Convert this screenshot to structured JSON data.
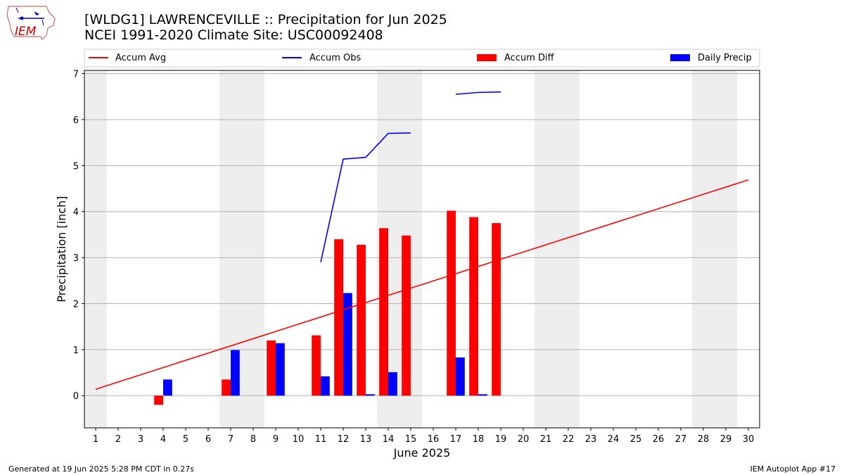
{
  "title_line1": "[WLDG1] LAWRENCEVILLE :: Precipitation for Jun 2025",
  "title_line2": "NCEI 1991-2020 Climate Site: USC00092408",
  "logo_text": "IEM",
  "footer_left": "Generated at 19 Jun 2025 5:28 PM CDT in 0.27s",
  "footer_right": "IEM Autoplot App #17",
  "colors": {
    "avg": "#ff0000",
    "obs": "#0000ff",
    "diff": "#ff0000",
    "daily": "#0000ff",
    "weekend": "#eeeeee",
    "grid": "#b0b0b0"
  },
  "chart_data": {
    "type": "bar",
    "xlabel": "June 2025",
    "ylabel": "Precipitation [inch]",
    "xlim": [
      0.5,
      30.5
    ],
    "ylim": [
      -0.7,
      7.07
    ],
    "x_ticks": [
      1,
      2,
      3,
      4,
      5,
      6,
      7,
      8,
      9,
      10,
      11,
      12,
      13,
      14,
      15,
      16,
      17,
      18,
      19,
      20,
      21,
      22,
      23,
      24,
      25,
      26,
      27,
      28,
      29,
      30
    ],
    "y_ticks": [
      0,
      1,
      2,
      3,
      4,
      5,
      6,
      7
    ],
    "grid": "y",
    "legend_position": "top, above plot",
    "legend": [
      "Accum Avg",
      "Accum Obs",
      "Accum Diff",
      "Daily Precip"
    ],
    "weekend_days": [
      1,
      7,
      8,
      14,
      15,
      21,
      22,
      28,
      29
    ],
    "accum_avg": {
      "name": "Accum Avg",
      "x": [
        1,
        30
      ],
      "values": [
        0.14,
        4.69
      ]
    },
    "accum_obs": {
      "name": "Accum Obs",
      "segments": [
        {
          "x": [
            11,
            12,
            13,
            14,
            15
          ],
          "values": [
            2.9,
            5.14,
            5.18,
            5.7,
            5.71
          ]
        },
        {
          "x": [
            17,
            18,
            19
          ],
          "values": [
            6.55,
            6.59,
            6.6
          ]
        }
      ]
    },
    "accum_diff": {
      "name": "Accum Diff",
      "x": [
        4,
        7,
        9,
        11,
        12,
        13,
        14,
        15,
        17,
        18,
        19
      ],
      "values": [
        -0.2,
        0.35,
        1.2,
        1.31,
        3.4,
        3.28,
        3.64,
        3.48,
        4.02,
        3.88,
        3.75
      ]
    },
    "daily_precip": {
      "name": "Daily Precip",
      "x": [
        4,
        7,
        9,
        11,
        12,
        13,
        14,
        17,
        18
      ],
      "values": [
        0.35,
        0.99,
        1.14,
        0.42,
        2.23,
        0.03,
        0.51,
        0.83,
        0.03
      ]
    }
  }
}
